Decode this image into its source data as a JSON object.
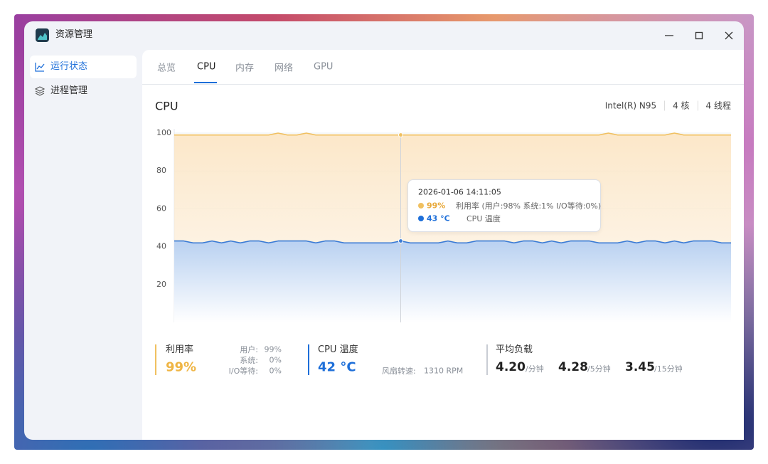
{
  "window": {
    "title": "资源管理"
  },
  "sidebar": {
    "items": [
      "运行状态",
      "进程管理"
    ]
  },
  "tabs": [
    "总览",
    "CPU",
    "内存",
    "网络",
    "GPU"
  ],
  "section": {
    "title": "CPU",
    "specs": [
      "Intel(R) N95",
      "4 核",
      "4 线程"
    ]
  },
  "chart_data": {
    "type": "line",
    "ylim": [
      0,
      100
    ],
    "yticks": [
      20,
      40,
      60,
      80,
      100
    ],
    "grid": true,
    "series": [
      {
        "color": "#f0c060",
        "values": [
          99,
          99,
          99,
          99,
          99,
          99,
          99,
          99,
          99,
          99,
          99,
          100,
          99,
          99,
          100,
          99,
          99,
          99,
          99,
          99,
          99,
          99,
          99,
          99,
          99,
          99,
          99,
          99,
          99,
          99,
          99,
          99,
          99,
          99,
          99,
          99,
          99,
          99,
          99,
          99,
          99,
          99,
          99,
          99,
          99,
          99,
          100,
          99,
          99,
          99,
          99,
          99,
          99,
          100,
          99,
          99,
          99,
          99,
          99,
          99
        ]
      },
      {
        "color": "#3a7bd5",
        "values": [
          43,
          43,
          42,
          42,
          43,
          42,
          43,
          42,
          43,
          43,
          42,
          43,
          43,
          43,
          43,
          42,
          43,
          43,
          42,
          42,
          42,
          42,
          42,
          42,
          43,
          42,
          42,
          42,
          42,
          43,
          42,
          42,
          43,
          43,
          43,
          43,
          42,
          43,
          43,
          42,
          43,
          42,
          43,
          43,
          43,
          42,
          42,
          42,
          43,
          42,
          43,
          43,
          42,
          43,
          42,
          43,
          43,
          43,
          42,
          42
        ]
      }
    ]
  },
  "tooltip": {
    "time": "2026-01-06 14:11:05",
    "items": [
      {
        "value": "99%",
        "label": "利用率 (用户:98% 系统:1% I/O等待:0%)"
      },
      {
        "value": "43 °C",
        "label": "CPU 温度"
      }
    ]
  },
  "stats": {
    "usage": {
      "label": "利用率",
      "value": "99%",
      "details": [
        {
          "label": "用户:",
          "value": "99%"
        },
        {
          "label": "系统:",
          "value": "0%"
        },
        {
          "label": "I/O等待:",
          "value": "0%"
        }
      ]
    },
    "temperature": {
      "label": "CPU 温度",
      "value": "42 °C",
      "fan_label": "风扇转速:",
      "fan_value": "1310 RPM"
    },
    "load": {
      "label": "平均负载",
      "items": [
        {
          "value": "4.20",
          "unit": "/分钟"
        },
        {
          "value": "4.28",
          "unit": "/5分钟"
        },
        {
          "value": "3.45",
          "unit": "/15分钟"
        }
      ]
    }
  }
}
